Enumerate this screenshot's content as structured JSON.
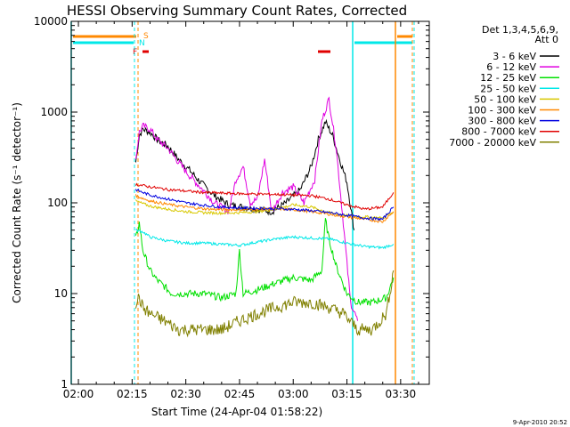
{
  "chart_data": {
    "type": "line",
    "title": "HESSI Observing Summary Count Rates, Corrected",
    "xlabel": "Start Time (24-Apr-04 01:58:22)",
    "ylabel": "Corrected Count Rate (s⁻¹ detector⁻¹)",
    "y_scale": "log",
    "ylim": [
      1,
      10000
    ],
    "xlim": [
      "01:58",
      "03:38"
    ],
    "x_ticks": [
      "02:00",
      "02:15",
      "02:30",
      "02:45",
      "03:00",
      "03:15",
      "03:30"
    ],
    "y_ticks": [
      "1",
      "10",
      "100",
      "1000",
      "10000"
    ],
    "timestamp": "9-Apr-2010 20:52",
    "legend": {
      "header": [
        "Det 1,3,4,5,6,9,",
        "Att 0"
      ],
      "placement": "right"
    },
    "flags": {
      "S": "S",
      "N": "N",
      "F": "F"
    },
    "series": [
      {
        "name": "3 - 6 keV",
        "color": "#000000",
        "x": [
          "02:16",
          "02:17",
          "02:18",
          "02:20",
          "02:22",
          "02:25",
          "02:28",
          "02:31",
          "02:34",
          "02:38",
          "02:42",
          "02:46",
          "02:50",
          "02:54",
          "02:58",
          "03:02",
          "03:05",
          "03:07",
          "03:09",
          "03:11",
          "03:13",
          "03:15",
          "03:17"
        ],
        "values": [
          280,
          550,
          650,
          600,
          500,
          420,
          300,
          230,
          170,
          120,
          95,
          90,
          85,
          80,
          100,
          140,
          250,
          500,
          780,
          550,
          300,
          170,
          50
        ]
      },
      {
        "name": "6 - 12 keV",
        "color": "#e000e0",
        "x": [
          "02:16",
          "02:17",
          "02:18",
          "02:20",
          "02:22",
          "02:25",
          "02:28",
          "02:31",
          "02:34",
          "02:38",
          "02:42",
          "02:44",
          "02:46",
          "02:48",
          "02:50",
          "02:52",
          "02:54",
          "02:57",
          "03:00",
          "03:03",
          "03:06",
          "03:08",
          "03:10",
          "03:12",
          "03:14",
          "03:16",
          "03:18"
        ],
        "values": [
          300,
          600,
          700,
          650,
          500,
          400,
          280,
          200,
          150,
          100,
          80,
          180,
          250,
          100,
          110,
          300,
          80,
          130,
          150,
          100,
          180,
          800,
          1400,
          400,
          60,
          8,
          5
        ]
      },
      {
        "name": "12 - 25 keV",
        "color": "#00e000",
        "x": [
          "02:16",
          "02:17",
          "02:18",
          "02:20",
          "02:22",
          "02:24",
          "02:26",
          "02:30",
          "02:35",
          "02:40",
          "02:44",
          "02:45",
          "02:46",
          "02:50",
          "02:55",
          "03:00",
          "03:05",
          "03:08",
          "03:09",
          "03:10",
          "03:12",
          "03:15",
          "03:18",
          "03:22",
          "03:26",
          "03:28"
        ],
        "values": [
          40,
          60,
          30,
          18,
          14,
          12,
          10,
          10,
          10,
          9,
          10,
          30,
          10,
          11,
          13,
          15,
          14,
          18,
          65,
          40,
          20,
          10,
          8,
          8,
          9,
          15
        ]
      },
      {
        "name": "25 - 50 keV",
        "color": "#00e8e8",
        "x": [
          "02:16",
          "02:18",
          "02:20",
          "02:25",
          "02:30",
          "02:35",
          "02:40",
          "02:45",
          "02:50",
          "02:55",
          "03:00",
          "03:05",
          "03:10",
          "03:15",
          "03:20",
          "03:25",
          "03:28"
        ],
        "values": [
          50,
          48,
          42,
          38,
          36,
          36,
          35,
          34,
          37,
          40,
          42,
          41,
          40,
          36,
          33,
          32,
          35
        ]
      },
      {
        "name": "50 - 100 keV",
        "color": "#d8c800",
        "x": [
          "02:16",
          "02:18",
          "02:20",
          "02:25",
          "02:30",
          "02:35",
          "02:40",
          "02:45",
          "02:50",
          "02:55",
          "03:00",
          "03:05",
          "03:10",
          "03:15",
          "03:20",
          "03:25",
          "03:28"
        ],
        "values": [
          105,
          98,
          92,
          85,
          80,
          78,
          77,
          78,
          80,
          85,
          95,
          90,
          78,
          72,
          70,
          68,
          80
        ]
      },
      {
        "name": "100 - 300 keV",
        "color": "#ff8800",
        "x": [
          "02:16",
          "02:18",
          "02:20",
          "02:25",
          "02:30",
          "02:35",
          "02:40",
          "02:45",
          "02:50",
          "02:55",
          "03:00",
          "03:05",
          "03:10",
          "03:15",
          "03:20",
          "03:25",
          "03:28"
        ],
        "values": [
          120,
          112,
          105,
          96,
          90,
          86,
          84,
          84,
          85,
          86,
          84,
          80,
          75,
          70,
          66,
          62,
          80
        ]
      },
      {
        "name": "300 - 800 keV",
        "color": "#0000e0",
        "x": [
          "02:16",
          "02:18",
          "02:20",
          "02:25",
          "02:30",
          "02:35",
          "02:40",
          "02:45",
          "02:50",
          "02:55",
          "03:00",
          "03:05",
          "03:10",
          "03:15",
          "03:20",
          "03:25",
          "03:28"
        ],
        "values": [
          140,
          130,
          122,
          110,
          100,
          94,
          90,
          88,
          87,
          86,
          85,
          82,
          78,
          73,
          68,
          66,
          90
        ]
      },
      {
        "name": "800 - 7000 keV",
        "color": "#e00000",
        "x": [
          "02:16",
          "02:18",
          "02:20",
          "02:25",
          "02:30",
          "02:35",
          "02:40",
          "02:45",
          "02:50",
          "02:55",
          "03:00",
          "03:05",
          "03:10",
          "03:15",
          "03:20",
          "03:25",
          "03:28"
        ],
        "values": [
          160,
          155,
          150,
          140,
          135,
          130,
          128,
          126,
          125,
          124,
          122,
          120,
          110,
          95,
          85,
          90,
          130
        ]
      },
      {
        "name": "7000 - 20000 keV",
        "color": "#808000",
        "x": [
          "02:16",
          "02:17",
          "02:18",
          "02:20",
          "02:24",
          "02:28",
          "02:32",
          "02:36",
          "02:40",
          "02:45",
          "02:50",
          "02:55",
          "03:00",
          "03:05",
          "03:10",
          "03:14",
          "03:18",
          "03:22",
          "03:26",
          "03:28"
        ],
        "values": [
          8,
          9,
          7,
          6,
          5,
          4,
          4,
          4,
          4,
          5,
          6,
          7,
          8,
          8,
          7,
          6,
          4,
          4,
          6,
          18
        ]
      }
    ]
  }
}
